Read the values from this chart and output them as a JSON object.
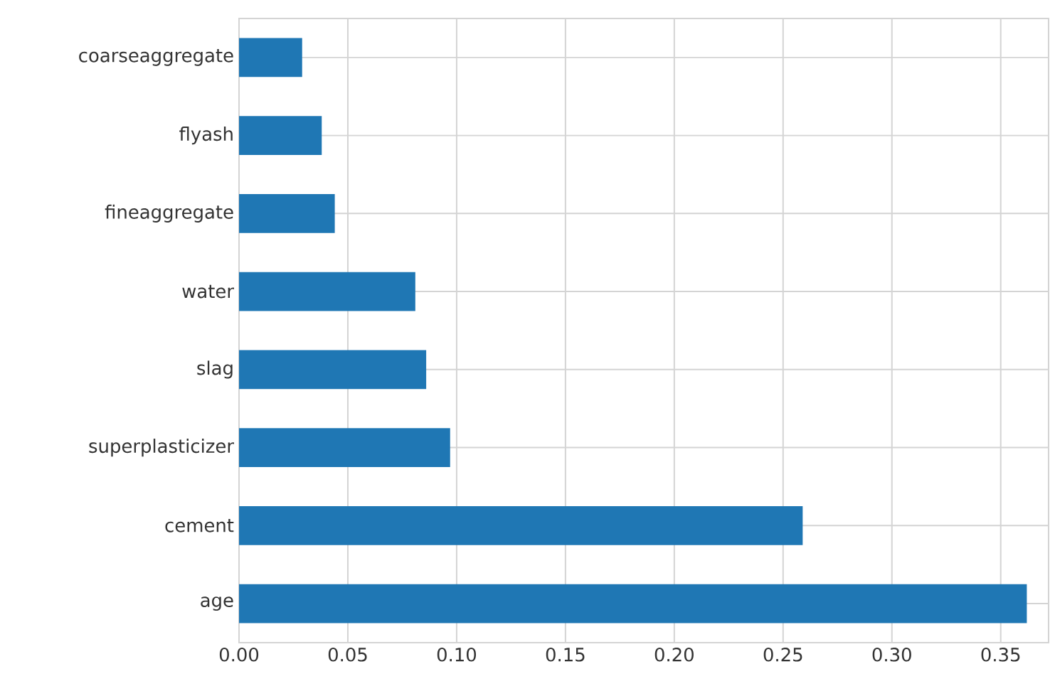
{
  "chart_data": {
    "type": "bar",
    "orientation": "horizontal",
    "categories": [
      "coarseaggregate",
      "flyash",
      "fineaggregate",
      "water",
      "slag",
      "superplasticizer",
      "cement",
      "age"
    ],
    "values": [
      0.029,
      0.038,
      0.044,
      0.081,
      0.086,
      0.097,
      0.259,
      0.362
    ],
    "color": "#1f77b4",
    "xlim": [
      0,
      0.372
    ],
    "xticks": [
      {
        "value": 0,
        "label": "0.00"
      },
      {
        "value": 0.05,
        "label": "0.05"
      },
      {
        "value": 0.1,
        "label": "0.10"
      },
      {
        "value": 0.15,
        "label": "0.15"
      },
      {
        "value": 0.2,
        "label": "0.20"
      },
      {
        "value": 0.25,
        "label": "0.25"
      },
      {
        "value": 0.3,
        "label": "0.30"
      },
      {
        "value": 0.35,
        "label": "0.35"
      }
    ],
    "grid": true
  }
}
